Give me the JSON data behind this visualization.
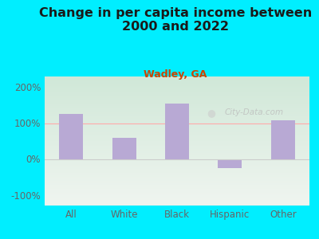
{
  "title": "Change in per capita income between\n2000 and 2022",
  "subtitle": "Wadley, GA",
  "categories": [
    "All",
    "White",
    "Black",
    "Hispanic",
    "Other"
  ],
  "values": [
    125,
    60,
    155,
    -25,
    107
  ],
  "bar_color": "#b8a9d4",
  "background_outer": "#00eeff",
  "background_inner_top": "#f0f5f0",
  "background_inner_bottom": "#d0e8d8",
  "title_color": "#1a1a1a",
  "subtitle_color": "#cc4400",
  "tick_label_color": "#666666",
  "yticks": [
    -100,
    0,
    100,
    200
  ],
  "ylim": [
    -130,
    230
  ],
  "watermark": "City-Data.com",
  "title_fontsize": 11.5,
  "subtitle_fontsize": 9,
  "tick_fontsize": 8.5,
  "hline_100_color": "#ffaaaa",
  "hline_0_color": "#cccccc"
}
